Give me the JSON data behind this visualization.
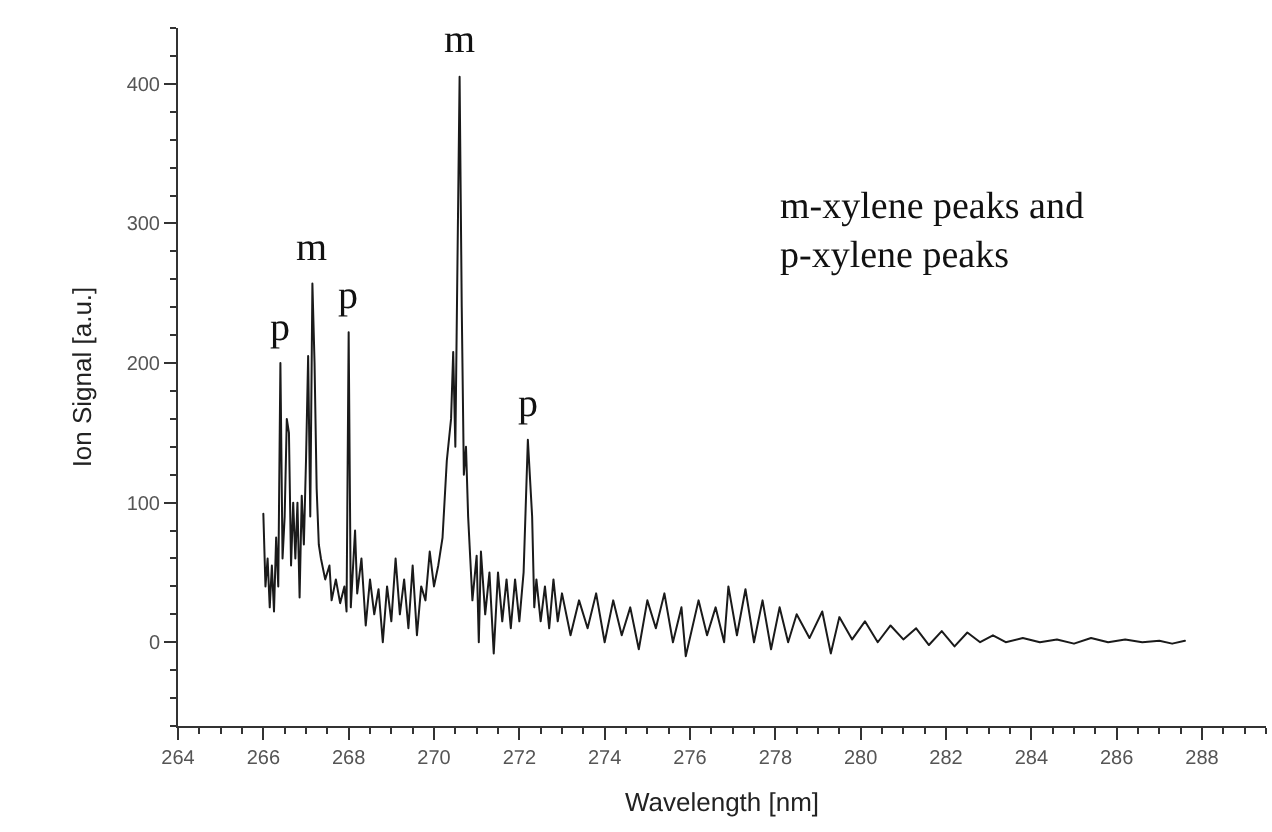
{
  "chart_data": {
    "type": "line",
    "xlabel": "Wavelength [nm]",
    "ylabel": "Ion Signal [a.u.]",
    "xlim": [
      264,
      289.5
    ],
    "xticks": [
      264,
      266,
      268,
      270,
      272,
      274,
      276,
      278,
      280,
      282,
      284,
      286,
      288
    ],
    "ylim": [
      -60,
      440
    ],
    "yticks": [
      0,
      100,
      200,
      300,
      400
    ],
    "marker": "none",
    "line_style": "solid",
    "series": [
      {
        "color": "#1a1a1a",
        "x": [
          266.0,
          266.05,
          266.1,
          266.15,
          266.2,
          266.25,
          266.3,
          266.35,
          266.4,
          266.45,
          266.5,
          266.55,
          266.6,
          266.65,
          266.7,
          266.75,
          266.8,
          266.85,
          266.9,
          266.95,
          267.0,
          267.05,
          267.1,
          267.15,
          267.2,
          267.25,
          267.3,
          267.35,
          267.45,
          267.55,
          267.6,
          267.7,
          267.8,
          267.9,
          267.95,
          268.0,
          268.05,
          268.15,
          268.2,
          268.3,
          268.4,
          268.5,
          268.6,
          268.7,
          268.8,
          268.9,
          269.0,
          269.1,
          269.2,
          269.3,
          269.4,
          269.5,
          269.6,
          269.7,
          269.8,
          269.9,
          270.0,
          270.1,
          270.2,
          270.3,
          270.4,
          270.45,
          270.5,
          270.6,
          270.65,
          270.7,
          270.75,
          270.8,
          270.85,
          270.9,
          271.0,
          271.05,
          271.1,
          271.2,
          271.3,
          271.4,
          271.5,
          271.6,
          271.7,
          271.8,
          271.9,
          272.0,
          272.1,
          272.2,
          272.3,
          272.35,
          272.4,
          272.5,
          272.6,
          272.7,
          272.8,
          272.9,
          273.0,
          273.2,
          273.4,
          273.6,
          273.8,
          274.0,
          274.2,
          274.4,
          274.6,
          274.8,
          275.0,
          275.2,
          275.4,
          275.6,
          275.8,
          275.9,
          276.2,
          276.4,
          276.6,
          276.8,
          276.9,
          277.1,
          277.3,
          277.5,
          277.7,
          277.9,
          278.1,
          278.3,
          278.5,
          278.8,
          279.1,
          279.3,
          279.5,
          279.8,
          280.1,
          280.4,
          280.7,
          281.0,
          281.3,
          281.6,
          281.9,
          282.2,
          282.5,
          282.8,
          283.1,
          283.4,
          283.8,
          284.2,
          284.6,
          285.0,
          285.4,
          285.8,
          286.2,
          286.6,
          287.0,
          287.3,
          287.6
        ],
        "values": [
          92,
          40,
          60,
          25,
          55,
          22,
          75,
          40,
          200,
          60,
          90,
          160,
          150,
          55,
          100,
          60,
          100,
          32,
          105,
          70,
          130,
          205,
          90,
          257,
          200,
          110,
          70,
          60,
          45,
          55,
          30,
          45,
          28,
          40,
          22,
          222,
          25,
          80,
          35,
          60,
          12,
          45,
          20,
          38,
          0,
          40,
          15,
          60,
          20,
          45,
          10,
          55,
          5,
          40,
          30,
          65,
          40,
          55,
          75,
          130,
          160,
          208,
          140,
          405,
          240,
          120,
          140,
          90,
          60,
          30,
          62,
          0,
          65,
          20,
          50,
          -8,
          50,
          15,
          45,
          10,
          45,
          15,
          50,
          145,
          90,
          25,
          45,
          15,
          40,
          10,
          45,
          15,
          35,
          5,
          30,
          10,
          35,
          0,
          30,
          5,
          25,
          -5,
          30,
          10,
          35,
          0,
          25,
          -10,
          30,
          5,
          25,
          0,
          40,
          5,
          38,
          0,
          30,
          -5,
          25,
          0,
          20,
          3,
          22,
          -8,
          18,
          2,
          15,
          0,
          12,
          2,
          10,
          -2,
          8,
          -3,
          7,
          0,
          5,
          0,
          3,
          0,
          2,
          -1,
          3,
          0,
          2,
          0,
          1,
          -1,
          1
        ]
      }
    ],
    "annotations": [
      {
        "text": "p",
        "x": 266.4,
        "y": 200
      },
      {
        "text": "m",
        "x": 267.15,
        "y": 257
      },
      {
        "text": "p",
        "x": 268.0,
        "y": 222
      },
      {
        "text": "m",
        "x": 270.6,
        "y": 405
      },
      {
        "text": "p",
        "x": 272.2,
        "y": 145
      },
      "m-xylene peaks and\np-xylene peaks"
    ]
  }
}
